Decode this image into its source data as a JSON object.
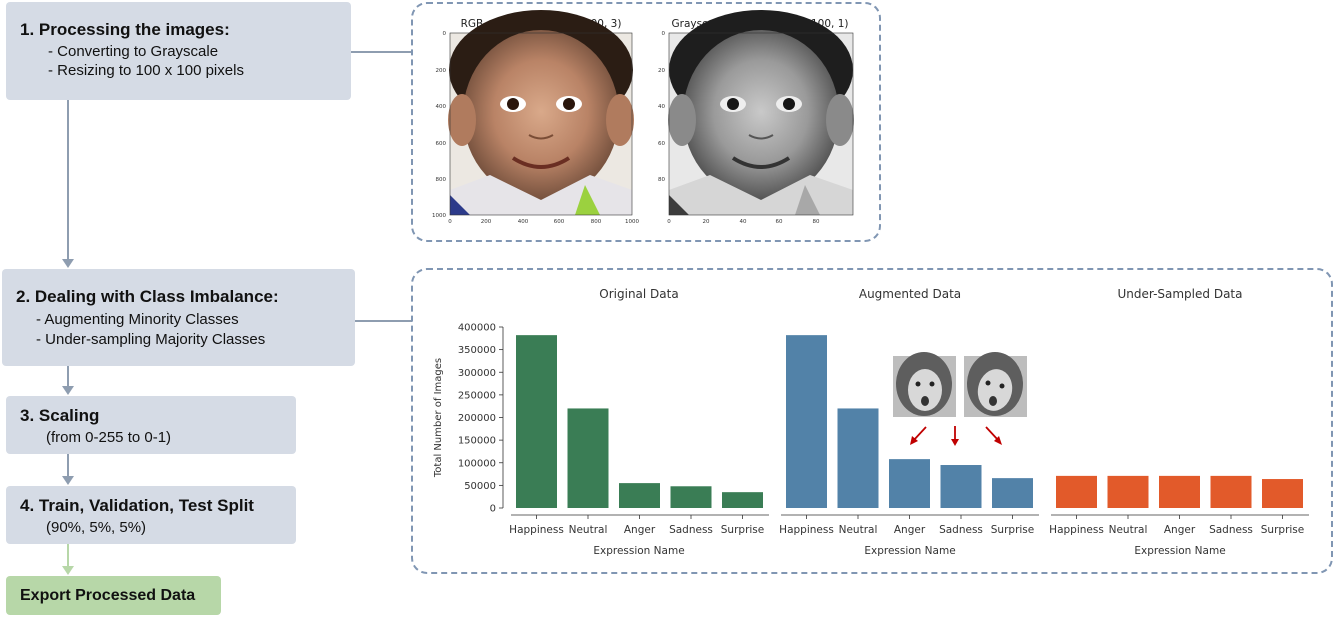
{
  "steps": {
    "step1": {
      "title": "1. Processing the images:",
      "lines": [
        "- Converting to Grayscale",
        "- Resizing to 100 x 100 pixels"
      ]
    },
    "step2": {
      "title": "2. Dealing with Class Imbalance:",
      "lines": [
        "- Augmenting Minority Classes",
        "- Under-sampling Majority Classes"
      ]
    },
    "step3": {
      "title": "3. Scaling",
      "lines": [
        "(from 0-255 to 0-1)"
      ]
    },
    "step4": {
      "title": "4. Train, Validation, Test Split",
      "lines": [
        "(90%, 5%, 5%)"
      ]
    },
    "export": {
      "title": "Export Processed Data"
    }
  },
  "images": {
    "rgb_title": "RGB of Shape: (1000, 1000, 3)",
    "gray_title": "Grayscale of Shape: (100, 100, 1)",
    "rgb_yticks": [
      "0",
      "200",
      "400",
      "600",
      "800",
      "1000"
    ],
    "rgb_xticks": [
      "0",
      "200",
      "400",
      "600",
      "800",
      "1000"
    ],
    "gray_yticks": [
      "0",
      "20",
      "40",
      "60",
      "80"
    ],
    "gray_xticks": [
      "0",
      "20",
      "40",
      "60",
      "80"
    ]
  },
  "colors": {
    "step_box": "#d5dbe5",
    "export_box": "#b7d7a8",
    "connector": "#8e9db0",
    "original": "#3a7d55",
    "augmented": "#5282a8",
    "undersampled": "#e25a2a",
    "arrows": "#c00000"
  },
  "chart_data": [
    {
      "type": "bar",
      "title": "Original Data",
      "categories": [
        "Happiness",
        "Neutral",
        "Anger",
        "Sadness",
        "Surprise"
      ],
      "values": [
        382000,
        220000,
        55000,
        48000,
        35000
      ],
      "xlabel": "Expression Name",
      "ylabel": "Total Number of Images",
      "ylim": [
        0,
        400000
      ],
      "yticks": [
        "0",
        "50000",
        "100000",
        "150000",
        "200000",
        "250000",
        "300000",
        "350000",
        "400000"
      ]
    },
    {
      "type": "bar",
      "title": "Augmented Data",
      "categories": [
        "Happiness",
        "Neutral",
        "Anger",
        "Sadness",
        "Surprise"
      ],
      "values": [
        382000,
        220000,
        108000,
        95000,
        66000
      ],
      "xlabel": "Expression Name",
      "ylabel": "",
      "ylim": [
        0,
        400000
      ]
    },
    {
      "type": "bar",
      "title": "Under-Sampled Data",
      "categories": [
        "Happiness",
        "Neutral",
        "Anger",
        "Sadness",
        "Surprise"
      ],
      "values": [
        71000,
        71000,
        71000,
        71000,
        64000
      ],
      "xlabel": "Expression Name",
      "ylabel": "",
      "ylim": [
        0,
        400000
      ]
    }
  ]
}
